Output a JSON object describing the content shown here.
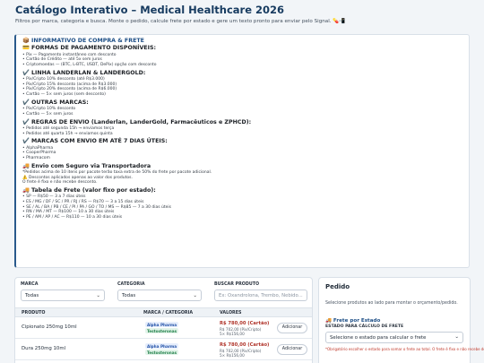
{
  "header": {
    "title": "Catálogo Interativo – Medical Healthcare 2026",
    "subtitle": "Filtros por marca, categoria e busca. Monte o pedido, calcule frete por estado e gere um texto pronto para enviar pelo Signal. 💊📲"
  },
  "info": {
    "title": "📦 INFORMATIVO DE COMPRA & FRETE",
    "sections": [
      {
        "heading": "💳 FORMAS DE PAGAMENTO DISPONÍVEIS:",
        "lines": [
          "• Pix — Pagamento instantâneo com desconto",
          "• Cartão de Crédito — até 5x sem juros",
          "• Criptomoedas — (BTC, L-BTC, USDT, DePix) opção com desconto"
        ]
      },
      {
        "heading": "✔️ LINHA LANDERLAN & LANDERGOLD:",
        "lines": [
          "• Pix/Cripto 10% desconto (até R$3.000)",
          "• Pix/Cripto 15% desconto (acima de R$3.000)",
          "• Pix/Cripto 20% desconto (acima de R$6.000)",
          "• Cartão — 5× sem juros (sem desconto)"
        ]
      },
      {
        "heading": "✔️ OUTRAS MARCAS:",
        "lines": [
          "• Pix/Cripto 10% desconto",
          "• Cartão — 5× sem juros"
        ]
      },
      {
        "heading": "✔️ REGRAS DE ENVIO (Landerlan, LanderGold, Farmacêuticos e ZPHCD):",
        "lines": [
          "• Pedidos até segunda 15h → enviamos terça",
          "• Pedidos até quarta 15h → enviamos quinta"
        ]
      },
      {
        "heading": "✔️ MARCAS COM ENVIO EM ATÉ 7 DIAS ÚTEIS:",
        "lines": [
          "• AlphaPharma",
          "• CooperPharma",
          "• Pharmacom"
        ]
      },
      {
        "heading": "🚚 Envio com Seguro via Transportadora",
        "lines": [
          "*Pedidos acima de 10 itens por pacote terão taxa extra de 50% do frete por pacote adicional.",
          "⚠️ Descontos aplicados apenas ao valor dos produtos.",
          "O frete é fixo e não recebe desconto."
        ]
      },
      {
        "heading": "🚚 Tabela de Frete (valor fixo por estado):",
        "lines": [
          "• SP — R$50 — 3 a 7 dias úteis",
          "• ES / MG / DF / SC / PR / RJ / RS — R$70 — 3 a 15 dias úteis",
          "• SE / AL / BA / PB / CE / PI / PA / GO / TO / MS — R$85 — 7 a 30 dias úteis",
          "• RN / MA / MT — R$100 — 10 a 30 dias úteis",
          "• PE / AM / AP / AC — R$110 — 10 a 30 dias úteis"
        ]
      }
    ]
  },
  "filters": {
    "brand_label": "MARCA",
    "brand_value": "Todas",
    "category_label": "CATEGORIA",
    "category_value": "Todas",
    "search_label": "BUSCAR PRODUTO",
    "search_placeholder": "Ex: Oxandrolona, Trembo, Nebido..."
  },
  "table": {
    "headers": {
      "product": "PRODUTO",
      "brand": "MARCA / CATEGORIA",
      "values": "VALORES"
    },
    "rows": [
      {
        "name": "Cipionato 250mg 10ml",
        "brand": "Alpha Pharma",
        "category": "Testosteronas",
        "card": "R$ 780,00 (Cartão)",
        "pix": "R$ 702,00 (Pix/Cripto)",
        "installments": "5× R$156,00",
        "button": "Adicionar"
      },
      {
        "name": "Dura 250mg 10ml",
        "brand": "Alpha Pharma",
        "category": "Testosteronas",
        "card": "R$ 780,00 (Cartão)",
        "pix": "R$ 702,00 (Pix/Cripto)",
        "installments": "5× R$156,00",
        "button": "Adicionar"
      }
    ]
  },
  "order": {
    "title": "Pedido",
    "empty_text": "Selecione produtos ao lado para montar o orçamento/pedido.",
    "shipping_title": "🚚 Frete por Estado",
    "state_label": "ESTADO PARA CÁLCULO DE FRETE",
    "state_value": "Selecione o estado para calcular o frete",
    "note": "*Obrigatório escolher o estado para somar o frete ao total. O frete é fixo e não recebe desconto."
  }
}
